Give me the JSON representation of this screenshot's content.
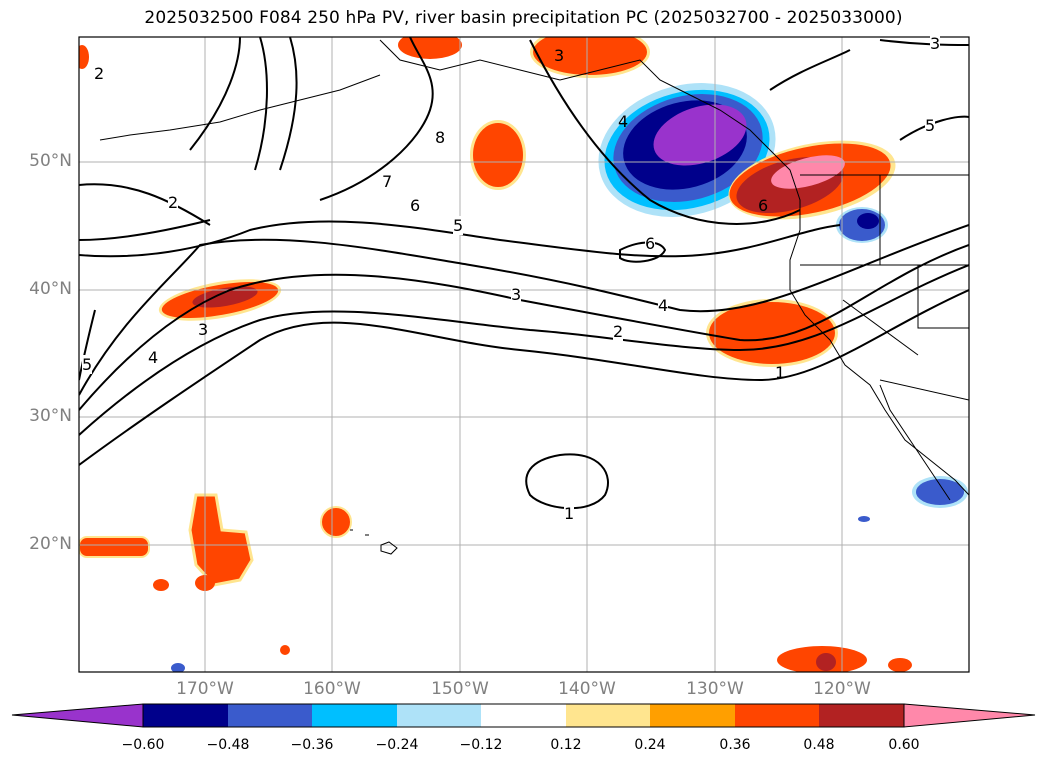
{
  "title": "2025032500 F084 250 hPa PV, river basin precipitation PC (2025032700 - 2025033000)",
  "y_ticks": [
    "50°N",
    "40°N",
    "30°N",
    "20°N"
  ],
  "x_ticks": [
    "170°W",
    "160°W",
    "150°W",
    "140°W",
    "130°W",
    "120°W"
  ],
  "colorbar": {
    "ticks": [
      "−0.60",
      "−0.48",
      "−0.36",
      "−0.24",
      "−0.12",
      "0.12",
      "0.24",
      "0.36",
      "0.48",
      "0.60"
    ],
    "colors": [
      "#9933cc",
      "#00008b",
      "#3a5bcc",
      "#00bfff",
      "#aee2f8",
      "#ffffff",
      "#ffe58f",
      "#ff9f00",
      "#ff4500",
      "#b22222",
      "#ff88aa"
    ]
  },
  "contour_labels": [
    "2",
    "2",
    "3",
    "4",
    "5",
    "3",
    "8",
    "7",
    "6",
    "5",
    "3",
    "4",
    "2",
    "1",
    "1",
    "6",
    "6",
    "5",
    "3",
    "4"
  ]
}
